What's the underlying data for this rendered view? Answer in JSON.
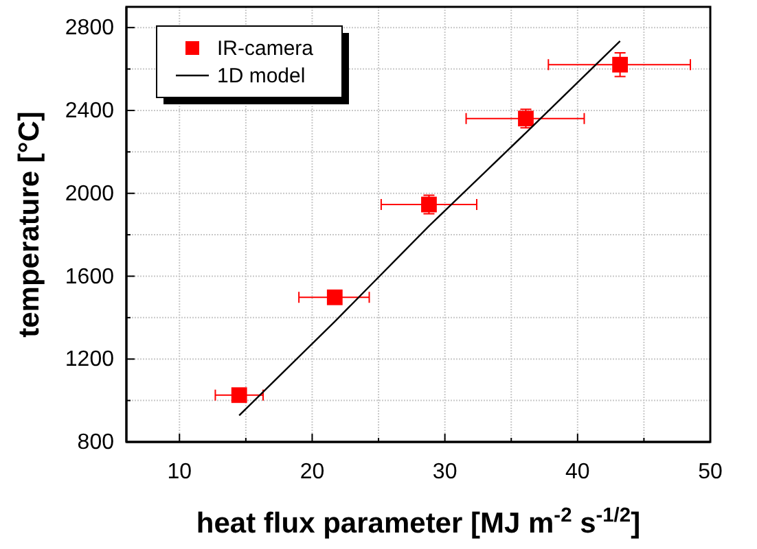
{
  "chart_data": {
    "type": "scatter",
    "xlabel": "heat flux parameter [MJ m$^{-2}$ s$^{-1/2}$]",
    "ylabel": "temperature [°C]",
    "xlim": [
      6,
      50
    ],
    "xticks": [
      10,
      {
        "value": 15,
        "label": null
      },
      20,
      {
        "value": 25,
        "label": null
      },
      30,
      {
        "value": 35,
        "label": null
      },
      40,
      {
        "value": 45,
        "label": null
      },
      50
    ],
    "ylim": [
      800,
      2900
    ],
    "yticks": [
      800,
      {
        "value": 1000,
        "label": null
      },
      1200,
      {
        "value": 1400,
        "label": null
      },
      1600,
      {
        "value": 1800,
        "label": null
      },
      2000,
      {
        "value": 2200,
        "label": null
      },
      2400,
      {
        "value": 2600,
        "label": null
      },
      2800
    ],
    "grid": true,
    "legend": "top left",
    "series": [
      {
        "name": "IR-camera",
        "color": "#ff0000",
        "marker": "square",
        "x": [
          14.5,
          21.7,
          28.8,
          36.1,
          43.2
        ],
        "values": [
          1026,
          1498,
          1946,
          2361,
          2621
        ],
        "errors": [
          null,
          null,
          45,
          45,
          57
        ],
        "xerrors": [
          [
            12.7,
            16.3
          ],
          [
            19,
            24.3
          ],
          [
            25.2,
            32.4
          ],
          [
            31.6,
            40.5
          ],
          [
            37.8,
            48.5
          ]
        ]
      },
      {
        "name": "1D model",
        "type": "line",
        "color": "#000000",
        "marker": "none",
        "x": [
          14.5,
          21.7,
          28.8,
          36.1,
          43.2
        ],
        "values": [
          928,
          1381,
          1842,
          2292,
          2735
        ]
      }
    ]
  }
}
